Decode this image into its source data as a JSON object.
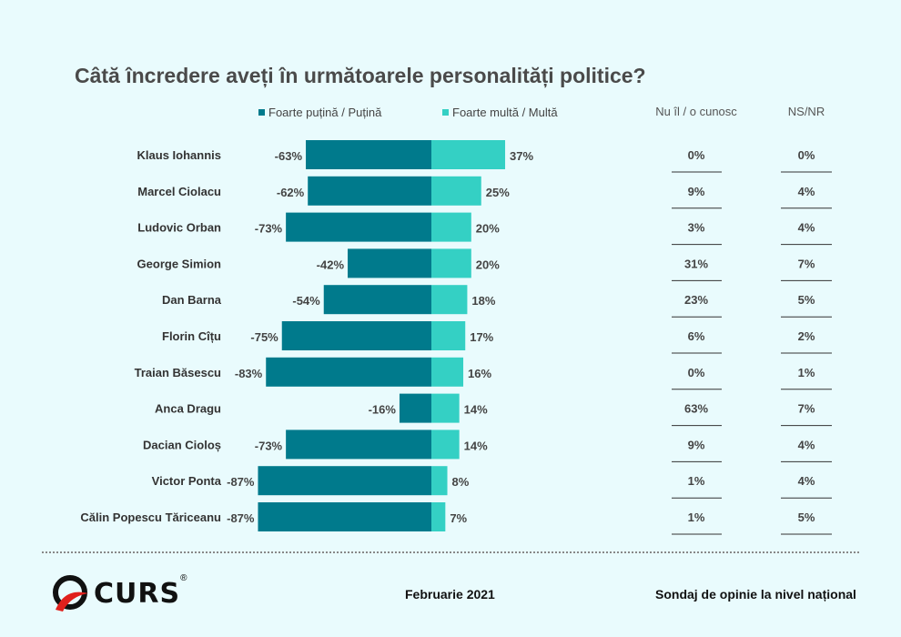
{
  "title": "Câtă încredere aveți în următoarele personalități politice?",
  "legend": {
    "neg": "Foarte puțină / Puțină",
    "pos": "Foarte multă / Multă"
  },
  "columns": {
    "unknown": "Nu îl / o cunosc",
    "nsnr": "NS/NR"
  },
  "colors": {
    "neg": "#007a8c",
    "pos": "#34d0c4"
  },
  "footer": {
    "logo": "CURS",
    "date": "Februarie 2021",
    "note": "Sondaj de opinie la nivel național"
  },
  "chart_data": {
    "type": "bar",
    "title": "Câtă încredere aveți în următoarele personalități politice?",
    "categories": [
      "Klaus Iohannis",
      "Marcel Ciolacu",
      "Ludovic Orban",
      "George Simion",
      "Dan Barna",
      "Florin Cîțu",
      "Traian Băsescu",
      "Anca Dragu",
      "Dacian Cioloș",
      "Victor Ponta",
      "Călin Popescu Tăriceanu"
    ],
    "series": [
      {
        "name": "Foarte puțină / Puțină",
        "values": [
          -63,
          -62,
          -73,
          -42,
          -54,
          -75,
          -83,
          -16,
          -73,
          -87,
          -87
        ]
      },
      {
        "name": "Foarte multă / Multă",
        "values": [
          37,
          25,
          20,
          20,
          18,
          17,
          16,
          14,
          14,
          8,
          7
        ]
      }
    ],
    "table": {
      "Nu îl / o cunosc": [
        "0%",
        "9%",
        "3%",
        "31%",
        "23%",
        "6%",
        "0%",
        "63%",
        "9%",
        "1%",
        "1%"
      ],
      "NS/NR": [
        "0%",
        "4%",
        "4%",
        "7%",
        "5%",
        "2%",
        "1%",
        "7%",
        "4%",
        "4%",
        "5%"
      ]
    },
    "legend_position": "top"
  }
}
